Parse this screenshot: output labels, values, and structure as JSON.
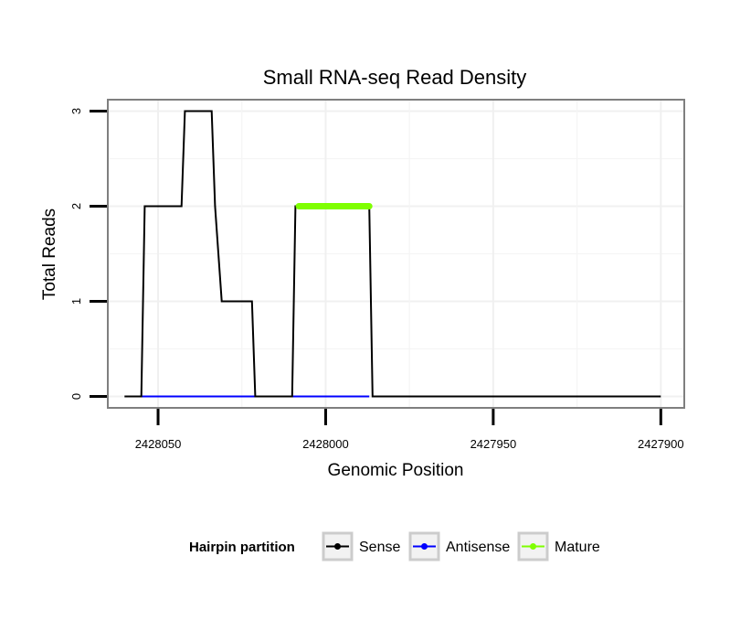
{
  "chart_data": {
    "type": "line",
    "title": "Small RNA-seq Read Density",
    "xlabel": "Genomic Position",
    "ylabel": "Total Reads",
    "xlim": [
      2428065,
      2427893
    ],
    "ylim": [
      -0.12,
      3.12
    ],
    "x_reversed": true,
    "x_ticks": [
      2428050,
      2428000,
      2427950,
      2427900
    ],
    "x_tick_labels": [
      "2428050",
      "2428000",
      "2427950",
      "2427900"
    ],
    "y_ticks": [
      0,
      1,
      2,
      3
    ],
    "y_tick_labels": [
      "0",
      "1",
      "2",
      "3"
    ],
    "grid": true,
    "legend": {
      "title": "Hairpin partition",
      "position": "bottom",
      "entries": [
        {
          "name": "Sense",
          "color": "#000000"
        },
        {
          "name": "Antisense",
          "color": "#0000ff"
        },
        {
          "name": "Mature",
          "color": "#7fff00"
        }
      ]
    },
    "series": [
      {
        "name": "Sense",
        "color": "#000000",
        "x": [
          2428060,
          2428055,
          2428054,
          2428043,
          2428042,
          2428034,
          2428033,
          2428033,
          2428031,
          2428022,
          2428021,
          2428010,
          2428009,
          2428006,
          2428005,
          2427987,
          2427986,
          2427975,
          2427900
        ],
        "y": [
          0,
          0,
          2,
          2,
          3,
          3,
          2,
          2,
          1,
          1,
          0,
          0,
          2,
          2,
          2,
          2,
          0,
          0,
          0
        ]
      },
      {
        "name": "Antisense",
        "color": "#0000ff",
        "x": [
          2428055,
          2427987
        ],
        "y": [
          0,
          0
        ]
      },
      {
        "name": "Mature",
        "color": "#7fff00",
        "x": [
          2428008,
          2427987
        ],
        "y": [
          2,
          2
        ]
      }
    ]
  }
}
